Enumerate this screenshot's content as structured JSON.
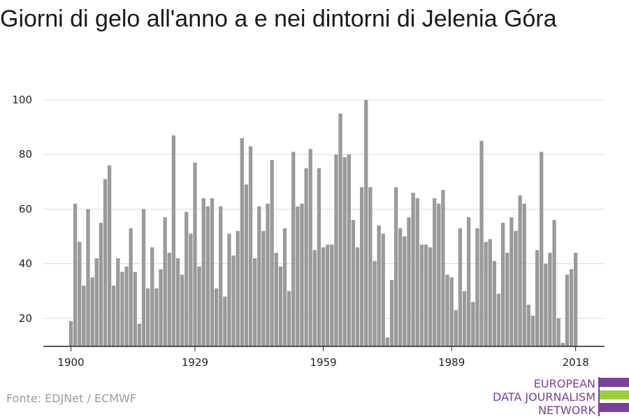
{
  "title": "Giorni di gelo all'anno a e nei dintorni di Jelenia Góra",
  "source": "Fonte: EDJNet / ECMWF",
  "logo": {
    "line1": "EUROPEAN",
    "line2": "DATA JOURNALISM",
    "line3": "NETWORK",
    "colors": {
      "purple": "#7a3f98",
      "green": "#9bcf3a"
    }
  },
  "chart_data": {
    "type": "bar",
    "x_start": 1900,
    "x_end": 2018,
    "xticks": [
      1900,
      1929,
      1959,
      1989,
      2018
    ],
    "yticks": [
      20,
      40,
      60,
      80,
      100
    ],
    "ylim": [
      10,
      100
    ],
    "grid": true,
    "bar_color": "#9a9a9a",
    "values": [
      19,
      62,
      48,
      32,
      60,
      35,
      42,
      55,
      71,
      76,
      32,
      42,
      37,
      39,
      53,
      37,
      18,
      60,
      31,
      46,
      31,
      38,
      57,
      44,
      87,
      42,
      36,
      59,
      51,
      77,
      39,
      64,
      61,
      64,
      31,
      61,
      28,
      51,
      43,
      52,
      86,
      69,
      83,
      42,
      61,
      52,
      62,
      78,
      44,
      39,
      53,
      30,
      81,
      61,
      62,
      75,
      82,
      45,
      75,
      46,
      47,
      47,
      80,
      95,
      79,
      80,
      56,
      46,
      68,
      100,
      68,
      41,
      54,
      51,
      13,
      34,
      68,
      53,
      50,
      57,
      66,
      64,
      47,
      47,
      46,
      64,
      62,
      67,
      36,
      35,
      23,
      53,
      30,
      57,
      26,
      53,
      85,
      48,
      49,
      41,
      29,
      55,
      44,
      57,
      52,
      65,
      62,
      25,
      21,
      45,
      81,
      40,
      44,
      56,
      20,
      11,
      36,
      38,
      44
    ]
  }
}
